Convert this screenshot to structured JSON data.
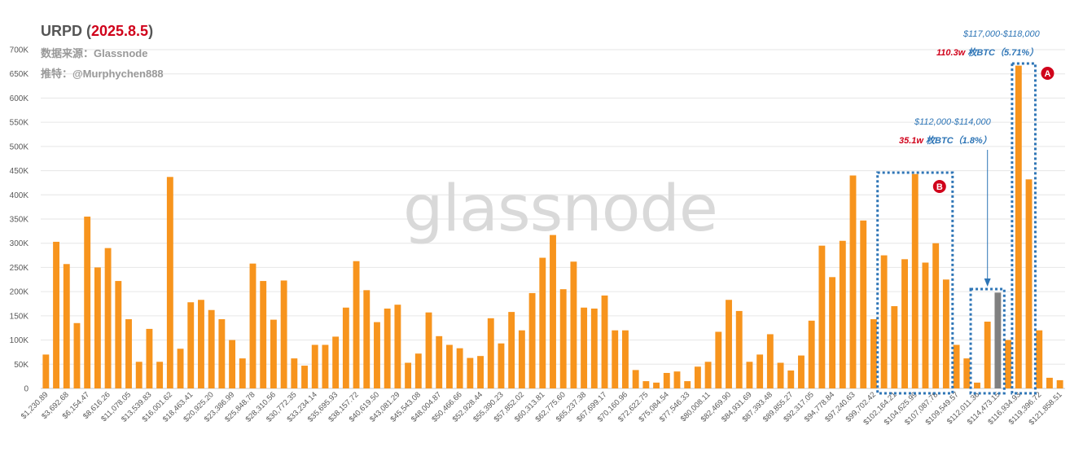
{
  "header": {
    "title_prefix": "URPD (",
    "title_date": "2025.8.5",
    "title_suffix": ")",
    "source": "数据来源：Glassnode",
    "credit": "推特：@Murphychen888"
  },
  "watermark": "glassnode",
  "annotations": {
    "A": {
      "letter": "A",
      "range": "$117,000-$118,000",
      "amount": "110.3w",
      "unit": " 枚BTC",
      "pct": "（5.71%）"
    },
    "B": {
      "letter": "B"
    },
    "gray": {
      "range": "$112,000-$114,000",
      "amount": "35.1w",
      "unit": " 枚BTC",
      "pct": "（1.8%）"
    }
  },
  "colors": {
    "bar": "#f7941d",
    "highlight_bar": "#808080",
    "box": "#2e75b6",
    "badge": "#d0021b",
    "grid": "#e6e6e6"
  },
  "chart_data": {
    "type": "bar",
    "ylim": [
      0,
      700000
    ],
    "yticks": [
      0,
      50000,
      100000,
      150000,
      200000,
      250000,
      300000,
      350000,
      400000,
      450000,
      500000,
      550000,
      600000,
      650000,
      700000
    ],
    "ytick_labels": [
      "0",
      "50K",
      "100K",
      "150K",
      "200K",
      "250K",
      "300K",
      "350K",
      "400K",
      "450K",
      "500K",
      "550K",
      "600K",
      "650K",
      "700K"
    ],
    "xtick_labels": [
      "$1,230.89",
      "$3,692.68",
      "$6,154.47",
      "$8,616.26",
      "$11,078.05",
      "$13,539.83",
      "$16,001.62",
      "$18,463.41",
      "$20,925.20",
      "$23,386.99",
      "$25,848.78",
      "$28,310.56",
      "$30,772.35",
      "$33,234.14",
      "$35,695.93",
      "$38,157.72",
      "$40,619.50",
      "$43,081.29",
      "$45,543.08",
      "$48,004.87",
      "$50,466.66",
      "$52,928.44",
      "$55,390.23",
      "$57,852.02",
      "$60,313.81",
      "$62,775.60",
      "$65,237.38",
      "$67,699.17",
      "$70,160.96",
      "$72,622.75",
      "$75,084.54",
      "$77,546.33",
      "$80,008.11",
      "$82,469.90",
      "$84,931.69",
      "$87,393.48",
      "$89,855.27",
      "$92,317.05",
      "$94,778.84",
      "$97,240.63",
      "$99,702.42",
      "$102,164.21",
      "$104,625.99",
      "$107,087.78",
      "$109,549.57",
      "$112,011.36",
      "$114,473.15",
      "$116,934.93",
      "$119,396.72",
      "$121,858.51"
    ],
    "values": [
      70000,
      303000,
      257000,
      135000,
      355000,
      250000,
      290000,
      222000,
      143000,
      55000,
      123000,
      55000,
      437000,
      82000,
      178000,
      183000,
      162000,
      143000,
      100000,
      62000,
      258000,
      222000,
      142000,
      223000,
      62000,
      47000,
      90000,
      90000,
      107000,
      167000,
      263000,
      203000,
      137000,
      165000,
      173000,
      53000,
      72000,
      157000,
      108000,
      90000,
      83000,
      63000,
      67000,
      145000,
      93000,
      158000,
      120000,
      197000,
      270000,
      317000,
      205000,
      262000,
      167000,
      165000,
      192000,
      120000,
      120000,
      38000,
      15000,
      12000,
      32000,
      35000,
      15000,
      45000,
      55000,
      117000,
      183000,
      160000,
      55000,
      70000,
      112000,
      53000,
      37000,
      68000,
      140000,
      295000,
      230000,
      305000,
      440000,
      347000,
      143000,
      275000,
      170000,
      267000,
      443000,
      260000,
      300000,
      225000,
      90000,
      62000,
      12000,
      138000,
      198000,
      100000,
      667000,
      432000,
      120000,
      22000,
      17000
    ],
    "highlight_index": 92
  }
}
